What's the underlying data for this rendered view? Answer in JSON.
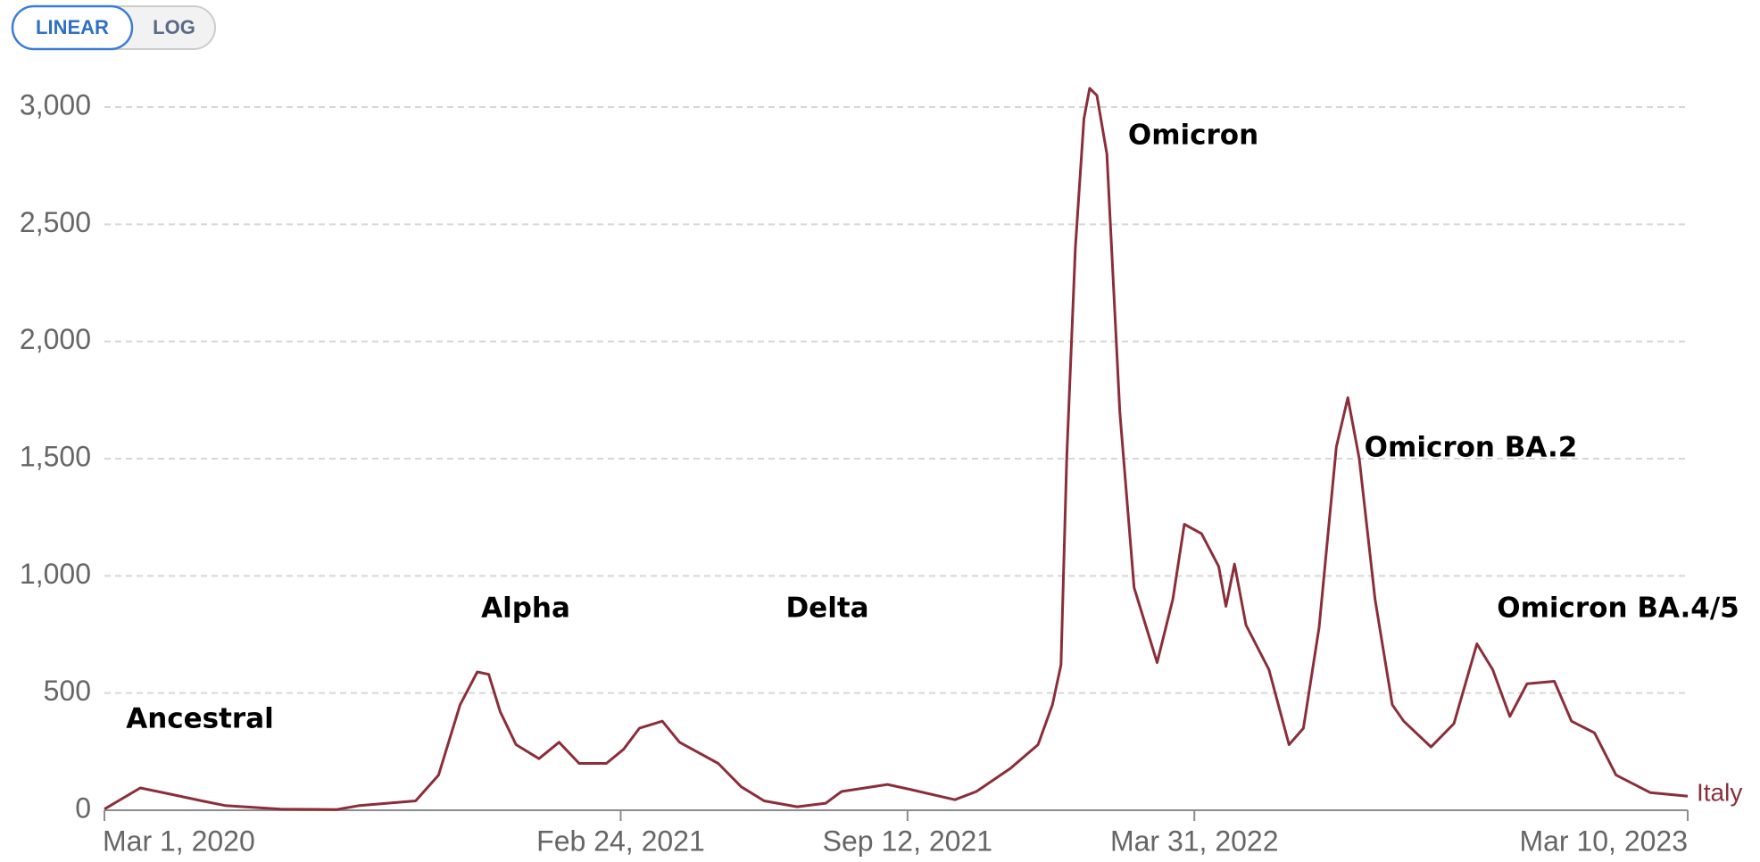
{
  "scale_buttons": [
    "LINEAR",
    "LOG"
  ],
  "chart_data": {
    "type": "line",
    "log_scale": false,
    "grid": true,
    "annotations": [
      "Ancestral",
      "Alpha",
      "Delta",
      "Omicron",
      "Omicron BA.2",
      "Omicron BA.4/5"
    ],
    "x": [
      "2020-03-01",
      "2020-03-26",
      "2020-04-15",
      "2020-05-08",
      "2020-05-24",
      "2020-07-02",
      "2020-08-10",
      "2020-08-26",
      "2020-10-04",
      "2020-10-20",
      "2020-11-04",
      "2020-11-16",
      "2020-11-24",
      "2020-12-02",
      "2020-12-13",
      "2020-12-29",
      "2021-01-12",
      "2021-01-26",
      "2021-02-14",
      "2021-02-26",
      "2021-03-09",
      "2021-03-25",
      "2021-04-06",
      "2021-04-18",
      "2021-05-03",
      "2021-05-19",
      "2021-06-04",
      "2021-06-27",
      "2021-07-17",
      "2021-07-28",
      "2021-08-29",
      "2021-09-13",
      "2021-10-15",
      "2021-10-30",
      "2021-11-23",
      "2021-12-12",
      "2021-12-22",
      "2021-12-28",
      "2022-01-01",
      "2022-01-07",
      "2022-01-13",
      "2022-01-17",
      "2022-01-22",
      "2022-01-29",
      "2022-02-07",
      "2022-02-17",
      "2022-03-05",
      "2022-03-16",
      "2022-03-24",
      "2022-04-05",
      "2022-04-17",
      "2022-04-22",
      "2022-04-28",
      "2022-05-06",
      "2022-05-22",
      "2022-06-05",
      "2022-06-15",
      "2022-06-26",
      "2022-07-08",
      "2022-07-16",
      "2022-07-24",
      "2022-08-04",
      "2022-08-16",
      "2022-08-24",
      "2022-09-12",
      "2022-09-28",
      "2022-10-14",
      "2022-10-25",
      "2022-11-06",
      "2022-11-18",
      "2022-12-07",
      "2022-12-19",
      "2023-01-04",
      "2023-01-19",
      "2023-02-12",
      "2023-03-10"
    ],
    "series": [
      {
        "name": "Italy",
        "color": "#8b2e3a",
        "values": [
          5,
          95,
          70,
          40,
          20,
          5,
          3,
          20,
          40,
          150,
          450,
          590,
          580,
          420,
          280,
          220,
          290,
          200,
          200,
          260,
          350,
          380,
          290,
          250,
          200,
          100,
          40,
          15,
          30,
          80,
          110,
          90,
          45,
          80,
          180,
          280,
          450,
          620,
          1500,
          2400,
          2950,
          3080,
          3050,
          2800,
          1700,
          950,
          630,
          900,
          1220,
          1180,
          1040,
          870,
          1050,
          790,
          600,
          280,
          350,
          780,
          1550,
          1760,
          1500,
          900,
          450,
          380,
          270,
          370,
          710,
          600,
          400,
          540,
          550,
          380,
          330,
          150,
          75,
          60
        ]
      }
    ],
    "xlim": [
      "2020-03-01",
      "2023-03-10"
    ],
    "xticks": [
      {
        "value": "2020-03-01",
        "label": "Mar 1, 2020"
      },
      {
        "value": "2021-02-24",
        "label": "Feb 24, 2021"
      },
      {
        "value": "2021-09-12",
        "label": "Sep 12, 2021"
      },
      {
        "value": "2022-03-31",
        "label": "Mar 31, 2022"
      },
      {
        "value": "2023-03-10",
        "label": "Mar 10, 2023"
      }
    ],
    "ylim": [
      0,
      3000
    ],
    "yticks": [
      0,
      500,
      {
        "value": 1000,
        "label": "1,000"
      },
      {
        "value": 1500,
        "label": "1,500"
      },
      {
        "value": 2000,
        "label": "2,000"
      },
      {
        "value": 2500,
        "label": "2,500"
      },
      {
        "value": 3000,
        "label": "3,000"
      }
    ]
  }
}
